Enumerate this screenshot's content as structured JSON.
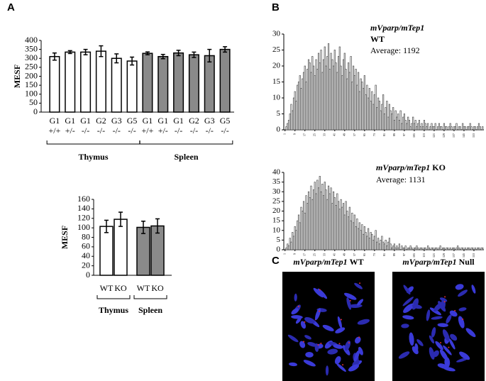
{
  "panel_labels": [
    "A",
    "B",
    "C"
  ],
  "chart_data": [
    {
      "type": "bar",
      "ylabel": "MESF",
      "categories": [
        "G1",
        "G1",
        "G1",
        "G2",
        "G3",
        "G5",
        "G1",
        "G1",
        "G1",
        "G2",
        "G3",
        "G5"
      ],
      "category_sublabels": [
        "+/+",
        "+/-",
        "-/-",
        "-/-",
        "-/-",
        "-/-",
        "+/+",
        "+/-",
        "-/-",
        "-/-",
        "-/-",
        "-/-"
      ],
      "series": [
        {
          "name": "Thymus",
          "color": "#ffffff",
          "values": [
            310,
            335,
            335,
            340,
            300,
            285,
            null,
            null,
            null,
            null,
            null,
            null
          ],
          "errors": [
            20,
            8,
            15,
            30,
            25,
            22,
            null,
            null,
            null,
            null,
            null,
            null
          ]
        },
        {
          "name": "Spleen",
          "color": "#8a8a8a",
          "values": [
            null,
            null,
            null,
            null,
            null,
            null,
            328,
            310,
            330,
            320,
            315,
            350
          ],
          "errors": [
            null,
            null,
            null,
            null,
            null,
            null,
            8,
            12,
            15,
            15,
            35,
            15
          ]
        }
      ],
      "ylim": [
        0,
        400
      ],
      "yticks": [
        0,
        50,
        100,
        150,
        200,
        250,
        300,
        350,
        400
      ]
    },
    {
      "type": "bar",
      "ylabel": "MESF",
      "categories": [
        "WT",
        "KO",
        "WT",
        "KO"
      ],
      "series": [
        {
          "name": "Thymus",
          "color": "#ffffff",
          "values": [
            103,
            118,
            null,
            null
          ],
          "errors": [
            13,
            15,
            null,
            null
          ]
        },
        {
          "name": "Spleen",
          "color": "#8a8a8a",
          "values": [
            null,
            null,
            101,
            104
          ],
          "errors": [
            null,
            null,
            13,
            15
          ]
        }
      ],
      "ylim": [
        0,
        160
      ],
      "yticks": [
        0,
        20,
        40,
        60,
        80,
        100,
        120,
        140,
        160
      ]
    },
    {
      "type": "bar",
      "annotation": {
        "gene": "mVparp/mTep1",
        "genotype": "WT",
        "average": "Average: 1192"
      },
      "color": "#ffffff",
      "x": [
        1,
        2,
        3,
        4,
        5,
        6,
        7,
        8,
        9,
        10,
        11,
        12,
        13,
        14,
        15,
        16,
        17,
        18,
        19,
        20,
        21,
        22,
        23,
        24,
        25,
        26,
        27,
        28,
        29,
        30,
        31,
        32,
        33,
        34,
        35,
        36,
        37,
        38,
        39,
        40,
        41,
        42,
        43,
        44,
        45,
        46,
        47,
        48,
        49,
        50,
        51,
        52,
        53,
        54,
        55,
        56,
        57,
        58,
        59,
        60,
        61,
        62,
        63,
        64,
        65,
        66,
        67,
        68,
        69,
        70,
        71,
        72,
        73,
        74,
        75,
        76,
        77,
        78,
        79,
        80,
        81,
        82,
        83,
        84,
        85,
        86,
        87,
        88,
        89,
        90,
        91,
        92,
        93,
        94,
        95,
        96,
        97,
        98,
        99,
        100,
        101,
        102,
        103,
        104,
        105,
        106,
        107,
        108,
        109,
        110,
        111,
        112,
        113,
        114,
        115,
        116,
        117,
        118,
        119,
        120,
        121,
        122,
        123,
        124,
        125,
        126,
        127,
        128,
        129,
        130,
        131,
        132,
        133,
        134,
        135,
        136,
        137,
        138,
        139,
        140,
        141,
        142,
        143,
        144,
        145,
        146,
        147,
        148,
        149,
        150,
        151,
        152,
        153,
        154,
        155,
        156,
        157,
        158,
        159,
        160
      ],
      "values": [
        0,
        1,
        2,
        3,
        5,
        8,
        6,
        10,
        12,
        9,
        14,
        15,
        17,
        13,
        16,
        18,
        20,
        15,
        19,
        22,
        21,
        18,
        23,
        20,
        17,
        22,
        19,
        24,
        21,
        25,
        18,
        22,
        26,
        20,
        23,
        27,
        19,
        24,
        22,
        20,
        25,
        21,
        18,
        23,
        26,
        20,
        17,
        22,
        24,
        19,
        16,
        21,
        18,
        23,
        15,
        20,
        17,
        19,
        14,
        18,
        12,
        16,
        15,
        13,
        17,
        11,
        14,
        10,
        13,
        9,
        12,
        8,
        11,
        14,
        7,
        10,
        9,
        6,
        8,
        11,
        5,
        7,
        9,
        4,
        8,
        6,
        5,
        7,
        3,
        6,
        4,
        5,
        3,
        6,
        2,
        4,
        5,
        3,
        2,
        4,
        3,
        1,
        2,
        4,
        2,
        3,
        1,
        2,
        3,
        1,
        2,
        1,
        3,
        2,
        1,
        2,
        0,
        1,
        2,
        1,
        1,
        2,
        0,
        1,
        2,
        1,
        1,
        0,
        2,
        1,
        1,
        0,
        1,
        2,
        1,
        0,
        1,
        1,
        2,
        0,
        1,
        1,
        0,
        2,
        1,
        1,
        0,
        1,
        1,
        2,
        1,
        0,
        1,
        1,
        0,
        1,
        2,
        1,
        0,
        1
      ],
      "xlim": [
        0,
        161
      ],
      "xticks": [
        1,
        9,
        17,
        25,
        33,
        41,
        49,
        57,
        65,
        73,
        81,
        89,
        97,
        105,
        113,
        121,
        129,
        137,
        145,
        153
      ],
      "ylim": [
        0,
        30
      ],
      "yticks": [
        0,
        5,
        10,
        15,
        20,
        25,
        30
      ]
    },
    {
      "type": "bar",
      "annotation": {
        "gene": "mVparp/mTep1",
        "genotype": "KO",
        "average": "Average: 1131"
      },
      "color": "#ffffff",
      "x": [
        1,
        2,
        3,
        4,
        5,
        6,
        7,
        8,
        9,
        10,
        11,
        12,
        13,
        14,
        15,
        16,
        17,
        18,
        19,
        20,
        21,
        22,
        23,
        24,
        25,
        26,
        27,
        28,
        29,
        30,
        31,
        32,
        33,
        34,
        35,
        36,
        37,
        38,
        39,
        40,
        41,
        42,
        43,
        44,
        45,
        46,
        47,
        48,
        49,
        50,
        51,
        52,
        53,
        54,
        55,
        56,
        57,
        58,
        59,
        60,
        61,
        62,
        63,
        64,
        65,
        66,
        67,
        68,
        69,
        70,
        71,
        72,
        73,
        74,
        75,
        76,
        77,
        78,
        79,
        80,
        81,
        82,
        83,
        84,
        85,
        86,
        87,
        88,
        89,
        90,
        91,
        92,
        93,
        94,
        95,
        96,
        97,
        98,
        99,
        100,
        101,
        102,
        103,
        104,
        105,
        106,
        107,
        108,
        109,
        110,
        111,
        112,
        113,
        114,
        115,
        116,
        117,
        118,
        119,
        120,
        121,
        122,
        123,
        124,
        125,
        126,
        127,
        128,
        129,
        130,
        131,
        132,
        133,
        134,
        135,
        136,
        137,
        138,
        139,
        140,
        141,
        142,
        143,
        144,
        145,
        146,
        147,
        148,
        149,
        150,
        151,
        152,
        153,
        154,
        155,
        156,
        157,
        158,
        159,
        160
      ],
      "values": [
        0,
        1,
        3,
        2,
        6,
        4,
        9,
        7,
        12,
        10,
        15,
        18,
        14,
        22,
        20,
        25,
        19,
        28,
        24,
        30,
        27,
        33,
        26,
        31,
        35,
        29,
        36,
        32,
        38,
        30,
        34,
        28,
        35,
        31,
        26,
        33,
        29,
        32,
        24,
        30,
        27,
        23,
        29,
        25,
        21,
        26,
        22,
        24,
        18,
        25,
        20,
        17,
        22,
        15,
        19,
        14,
        18,
        12,
        16,
        11,
        14,
        10,
        13,
        8,
        12,
        9,
        7,
        11,
        6,
        9,
        8,
        5,
        7,
        10,
        4,
        6,
        3,
        5,
        7,
        4,
        3,
        5,
        2,
        4,
        6,
        3,
        1,
        2,
        3,
        1,
        2,
        1,
        3,
        0,
        2,
        1,
        1,
        2,
        0,
        1,
        1,
        2,
        1,
        0,
        1,
        1,
        2,
        1,
        0,
        1,
        1,
        0,
        1,
        1,
        0,
        2,
        1,
        0,
        1,
        1,
        0,
        1,
        1,
        0,
        1,
        2,
        0,
        1,
        1,
        0,
        1,
        1,
        0,
        1,
        0,
        1,
        1,
        0,
        1,
        2,
        1,
        0,
        1,
        1,
        0,
        1,
        0,
        1,
        1,
        0,
        1,
        1,
        0,
        1,
        0,
        1,
        1,
        0,
        1,
        1
      ],
      "xlim": [
        0,
        161
      ],
      "xticks": [
        1,
        9,
        17,
        25,
        33,
        41,
        49,
        57,
        65,
        73,
        81,
        89,
        97,
        105,
        113,
        121,
        129,
        137,
        145,
        153
      ],
      "ylim": [
        0,
        40
      ],
      "yticks": [
        0,
        5,
        10,
        15,
        20,
        25,
        30,
        35,
        40
      ]
    }
  ],
  "images": [
    {
      "gene": "mVparp/mTep1",
      "genotype": "WT"
    },
    {
      "gene": "mVparp/mTep1",
      "genotype": "Null"
    }
  ]
}
